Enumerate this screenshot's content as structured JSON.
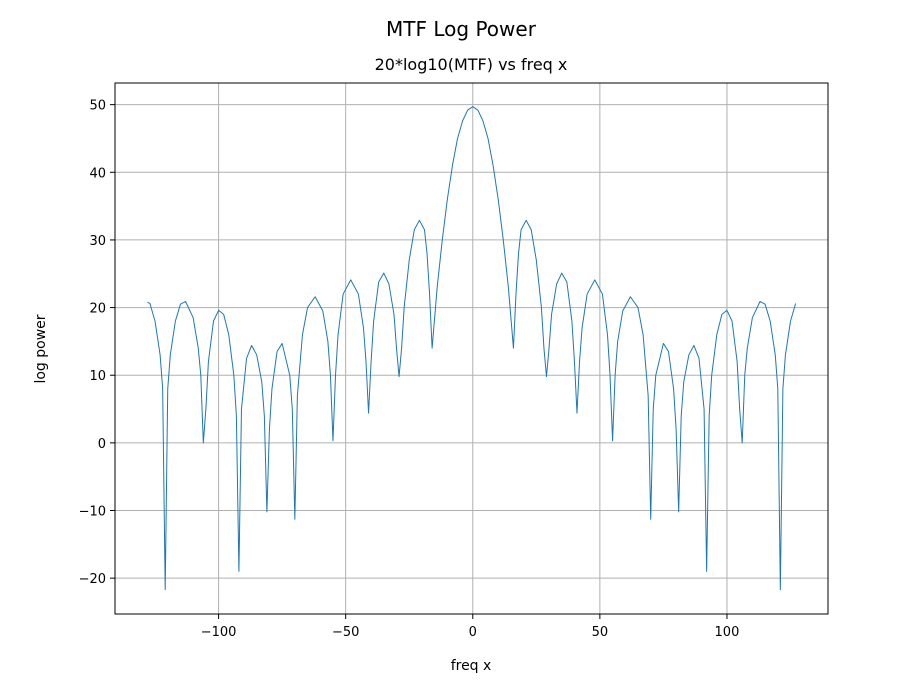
{
  "chart_data": {
    "type": "line",
    "title": "MTF Log Power",
    "subtitle": "20*log10(MTF) vs freq x",
    "xlabel": "freq x",
    "ylabel": "log power",
    "x": [
      -128,
      -127,
      -125,
      -123,
      -122,
      -121,
      -120,
      -119,
      -117,
      -115,
      -113,
      -110,
      -108,
      -107,
      -106,
      -105,
      -104,
      -102,
      -100,
      -98,
      -96,
      -94,
      -93,
      -92,
      -91,
      -89,
      -87,
      -85,
      -83,
      -82,
      -81,
      -80,
      -79,
      -77,
      -75,
      -72,
      -71,
      -70,
      -69,
      -67,
      -65,
      -62,
      -59,
      -57,
      -56,
      -55,
      -54,
      -53,
      -51,
      -48,
      -45,
      -43,
      -42,
      -41,
      -40,
      -39,
      -37,
      -35,
      -33,
      -31,
      -30,
      -29,
      -28,
      -27,
      -25,
      -23,
      -21,
      -19,
      -18,
      -17,
      -16,
      -14,
      -12,
      -10,
      -8,
      -6,
      -4,
      -2,
      0,
      2,
      4,
      6,
      8,
      10,
      12,
      14,
      16,
      17,
      18,
      19,
      21,
      23,
      25,
      27,
      28,
      29,
      30,
      31,
      33,
      35,
      37,
      39,
      40,
      41,
      42,
      43,
      45,
      48,
      51,
      53,
      54,
      55,
      56,
      57,
      59,
      62,
      65,
      67,
      69,
      70,
      71,
      72,
      75,
      77,
      79,
      80,
      81,
      82,
      83,
      85,
      87,
      89,
      91,
      92,
      93,
      94,
      96,
      98,
      100,
      102,
      104,
      105,
      106,
      107,
      108,
      110,
      113,
      115,
      117,
      119,
      120,
      121,
      122,
      123,
      125,
      127
    ],
    "series": [
      {
        "name": "log power",
        "color": "#1f77b4",
        "values": [
          20.8,
          20.6,
          18,
          13,
          8,
          -21.7,
          8,
          13,
          18,
          20.5,
          20.9,
          18.5,
          14,
          10,
          0,
          5,
          12,
          18,
          19.6,
          19,
          16,
          10,
          4,
          -19,
          5,
          12.5,
          14.4,
          13,
          9,
          4,
          -10.2,
          2,
          8,
          13.5,
          14.7,
          10,
          5,
          -11.3,
          7,
          16,
          20,
          21.6,
          19.5,
          15,
          10,
          0.3,
          10,
          16,
          22,
          24.1,
          22,
          17,
          12,
          4.4,
          12,
          18,
          23.8,
          25.1,
          23.5,
          19,
          14,
          9.8,
          14,
          20,
          27,
          31.5,
          32.9,
          31.5,
          28,
          22,
          14,
          23,
          30,
          36,
          41,
          45,
          47.6,
          49.2,
          49.7,
          49.2,
          47.6,
          45,
          41,
          36,
          30,
          23,
          14,
          22,
          28,
          31.5,
          32.9,
          31.5,
          27,
          20,
          14,
          9.8,
          14,
          19,
          23.5,
          25.1,
          23.8,
          18,
          12,
          4.4,
          12,
          17,
          22,
          24.1,
          22,
          16,
          10,
          0.3,
          10,
          15,
          19.5,
          21.6,
          20,
          16,
          7,
          -11.3,
          5,
          10,
          14.7,
          13.5,
          8,
          2,
          -10.2,
          4,
          9,
          13,
          14.4,
          12.5,
          5,
          -19,
          4,
          10,
          16,
          19,
          19.6,
          18,
          12,
          5,
          0,
          10,
          14,
          18.5,
          20.9,
          20.5,
          18,
          13,
          8,
          -21.7,
          8,
          13,
          18,
          20.6
        ]
      }
    ],
    "xlim": [
      -140.75,
      139.75
    ],
    "ylim": [
      -25.3,
      53.2
    ],
    "xticks": [
      {
        "value": -100,
        "label": "−100"
      },
      {
        "value": -50,
        "label": "−50"
      },
      0,
      50,
      100
    ],
    "yticks": [
      {
        "value": -20,
        "label": "−20"
      },
      {
        "value": -10,
        "label": "−10"
      },
      0,
      10,
      20,
      30,
      40,
      50
    ],
    "grid": true
  }
}
